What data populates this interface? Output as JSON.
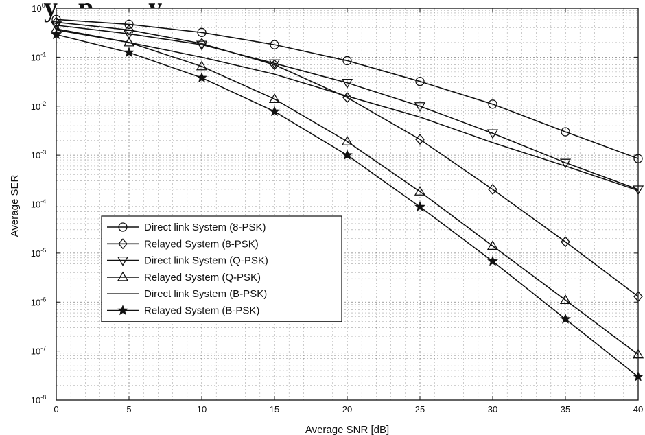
{
  "header_fragment": "y   p        y",
  "chart_data": {
    "type": "line",
    "title": "",
    "xlabel": "Average SNR [dB]",
    "ylabel": "Average SER",
    "xlim": [
      0,
      40
    ],
    "ylim_log10": [
      -8,
      0
    ],
    "y_scale": "log",
    "grid": true,
    "legend_position": "lower-left",
    "x_ticks": [
      0,
      5,
      10,
      15,
      20,
      25,
      30,
      35,
      40
    ],
    "y_ticks": [
      {
        "exp": "0",
        "value": 1
      },
      {
        "exp": "-1",
        "value": 0.1
      },
      {
        "exp": "-2",
        "value": 0.01
      },
      {
        "exp": "-3",
        "value": 0.001
      },
      {
        "exp": "-4",
        "value": 0.0001
      },
      {
        "exp": "-5",
        "value": 1e-05
      },
      {
        "exp": "-6",
        "value": 1e-06
      },
      {
        "exp": "-7",
        "value": 1e-07
      },
      {
        "exp": "-8",
        "value": 1e-08
      }
    ],
    "series": [
      {
        "name": "Direct link System (8-PSK)",
        "marker": "circle",
        "x": [
          0,
          5,
          10,
          15,
          20,
          25,
          30,
          35,
          40
        ],
        "y": [
          0.59,
          0.47,
          0.32,
          0.18,
          0.085,
          0.032,
          0.011,
          0.003,
          0.00085
        ]
      },
      {
        "name": "Relayed System (8-PSK)",
        "marker": "diamond",
        "x": [
          0,
          5,
          10,
          15,
          20,
          25,
          30,
          35,
          40
        ],
        "y": [
          0.52,
          0.36,
          0.19,
          0.07,
          0.015,
          0.0021,
          0.0002,
          1.7e-05,
          1.3e-06
        ]
      },
      {
        "name": "Direct link System (Q-PSK)",
        "marker": "triangle-down",
        "x": [
          0,
          5,
          10,
          15,
          20,
          25,
          30,
          35,
          40
        ],
        "y": [
          0.45,
          0.3,
          0.18,
          0.075,
          0.03,
          0.01,
          0.0028,
          0.0007,
          0.0002
        ]
      },
      {
        "name": "Relayed System (Q-PSK)",
        "marker": "triangle-up",
        "x": [
          0,
          5,
          10,
          15,
          20,
          25,
          30,
          35,
          40
        ],
        "y": [
          0.38,
          0.2,
          0.065,
          0.014,
          0.0019,
          0.00018,
          1.4e-05,
          1.1e-06,
          8.5e-08
        ]
      },
      {
        "name": "Direct link System (B-PSK)",
        "marker": "none",
        "x": [
          0,
          5,
          10,
          15,
          20,
          25,
          30,
          35,
          40
        ],
        "y": [
          0.36,
          0.2,
          0.1,
          0.045,
          0.016,
          0.006,
          0.0018,
          0.0006,
          0.00019
        ]
      },
      {
        "name": "Relayed System (B-PSK)",
        "marker": "star",
        "x": [
          0,
          5,
          10,
          15,
          20,
          25,
          30,
          35,
          40
        ],
        "y": [
          0.29,
          0.125,
          0.038,
          0.0078,
          0.001,
          8.8e-05,
          6.8e-06,
          4.5e-07,
          3e-08
        ]
      }
    ]
  }
}
